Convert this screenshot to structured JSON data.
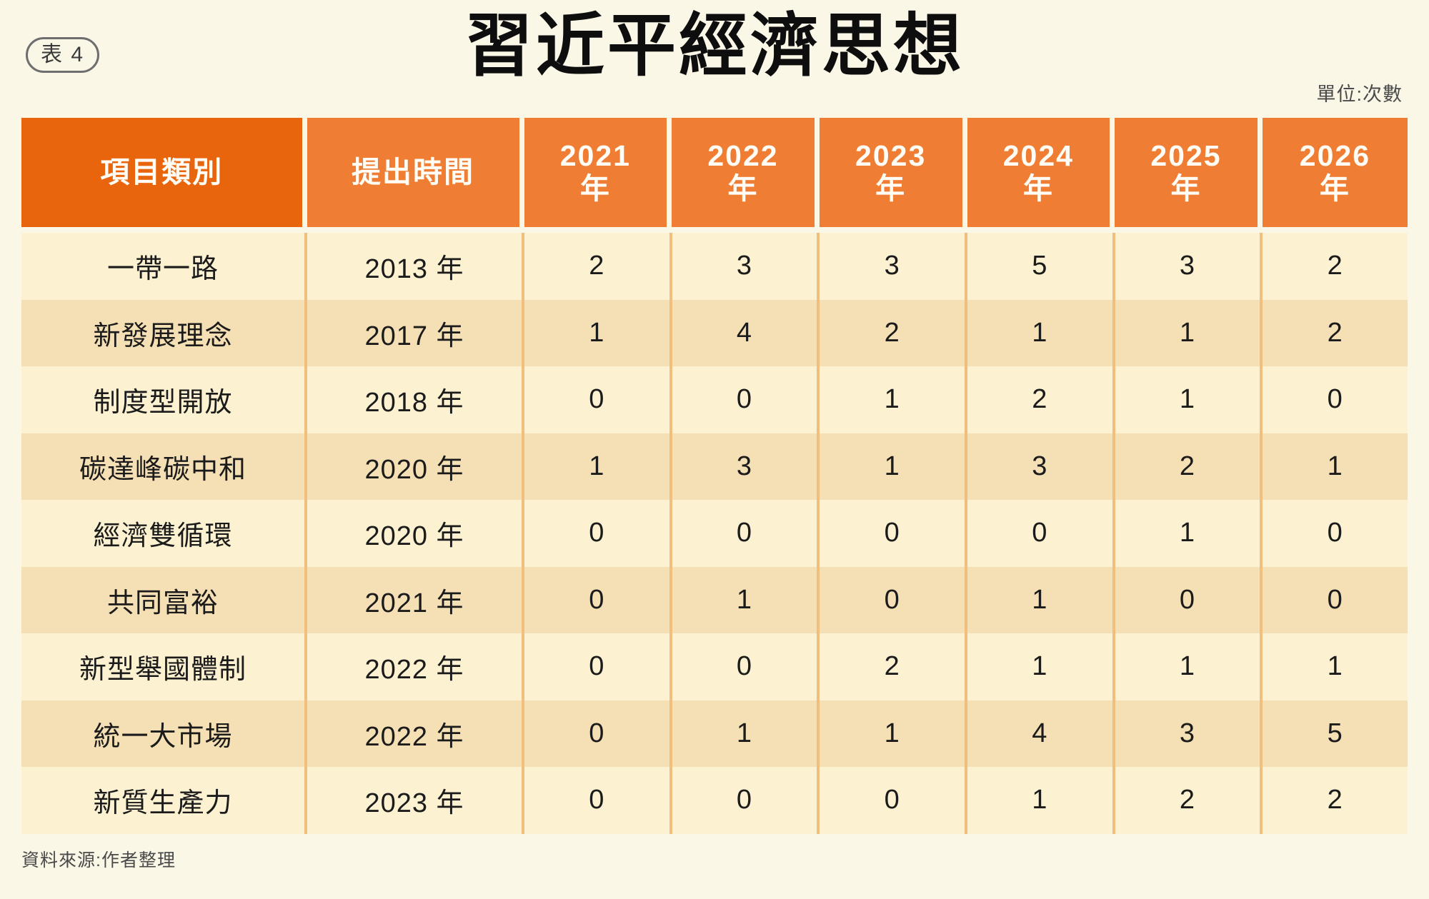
{
  "page": {
    "badge": "表 4",
    "title": "習近平經濟思想",
    "unit_note": "單位:次數",
    "source_note": "資料來源:作者整理"
  },
  "colors": {
    "page_background": "#FBF7E7",
    "header_first_column": "#E9650D",
    "header_other_columns": "#EF7D33",
    "row_light": "#FCF1D0",
    "row_dark": "#F5DFB4",
    "column_divider": "#F0BF7E",
    "header_text": "#FFFDF6",
    "body_text": "#1B1B1B"
  },
  "table": {
    "columns": [
      "項目類別",
      "提出時間",
      "2021\n年",
      "2022\n年",
      "2023\n年",
      "2024\n年",
      "2025\n年",
      "2026\n年"
    ],
    "rows": [
      {
        "category": "一帶一路",
        "proposed": "2013 年",
        "values": [
          "2",
          "3",
          "3",
          "5",
          "3",
          "2"
        ]
      },
      {
        "category": "新發展理念",
        "proposed": "2017 年",
        "values": [
          "1",
          "4",
          "2",
          "1",
          "1",
          "2"
        ]
      },
      {
        "category": "制度型開放",
        "proposed": "2018 年",
        "values": [
          "0",
          "0",
          "1",
          "2",
          "1",
          "0"
        ]
      },
      {
        "category": "碳達峰碳中和",
        "proposed": "2020 年",
        "values": [
          "1",
          "3",
          "1",
          "3",
          "2",
          "1"
        ]
      },
      {
        "category": "經濟雙循環",
        "proposed": "2020 年",
        "values": [
          "0",
          "0",
          "0",
          "0",
          "1",
          "0"
        ]
      },
      {
        "category": "共同富裕",
        "proposed": "2021 年",
        "values": [
          "0",
          "1",
          "0",
          "1",
          "0",
          "0"
        ]
      },
      {
        "category": "新型舉國體制",
        "proposed": "2022 年",
        "values": [
          "0",
          "0",
          "2",
          "1",
          "1",
          "1"
        ]
      },
      {
        "category": "統一大市場",
        "proposed": "2022 年",
        "values": [
          "0",
          "1",
          "1",
          "4",
          "3",
          "5"
        ]
      },
      {
        "category": "新質生產力",
        "proposed": "2023 年",
        "values": [
          "0",
          "0",
          "0",
          "1",
          "2",
          "2"
        ]
      }
    ]
  },
  "chart_data": {
    "type": "table",
    "title": "習近平經濟思想",
    "unit": "次數",
    "columns": [
      "項目類別",
      "提出時間",
      "2021年",
      "2022年",
      "2023年",
      "2024年",
      "2025年",
      "2026年"
    ],
    "categories": [
      "一帶一路",
      "新發展理念",
      "制度型開放",
      "碳達峰碳中和",
      "經濟雙循環",
      "共同富裕",
      "新型舉國體制",
      "統一大市場",
      "新質生產力"
    ],
    "proposed_year": [
      "2013",
      "2017",
      "2018",
      "2020",
      "2020",
      "2021",
      "2022",
      "2022",
      "2023"
    ],
    "x": [
      2021,
      2022,
      2023,
      2024,
      2025,
      2026
    ],
    "series": [
      {
        "name": "一帶一路",
        "values": [
          2,
          3,
          3,
          5,
          3,
          2
        ]
      },
      {
        "name": "新發展理念",
        "values": [
          1,
          4,
          2,
          1,
          1,
          2
        ]
      },
      {
        "name": "制度型開放",
        "values": [
          0,
          0,
          1,
          2,
          1,
          0
        ]
      },
      {
        "name": "碳達峰碳中和",
        "values": [
          1,
          3,
          1,
          3,
          2,
          1
        ]
      },
      {
        "name": "經濟雙循環",
        "values": [
          0,
          0,
          0,
          0,
          1,
          0
        ]
      },
      {
        "name": "共同富裕",
        "values": [
          0,
          1,
          0,
          1,
          0,
          0
        ]
      },
      {
        "name": "新型舉國體制",
        "values": [
          0,
          0,
          2,
          1,
          1,
          1
        ]
      },
      {
        "name": "統一大市場",
        "values": [
          0,
          1,
          1,
          4,
          3,
          5
        ]
      },
      {
        "name": "新質生產力",
        "values": [
          0,
          0,
          0,
          1,
          2,
          2
        ]
      }
    ],
    "source": "資料來源:作者整理"
  }
}
